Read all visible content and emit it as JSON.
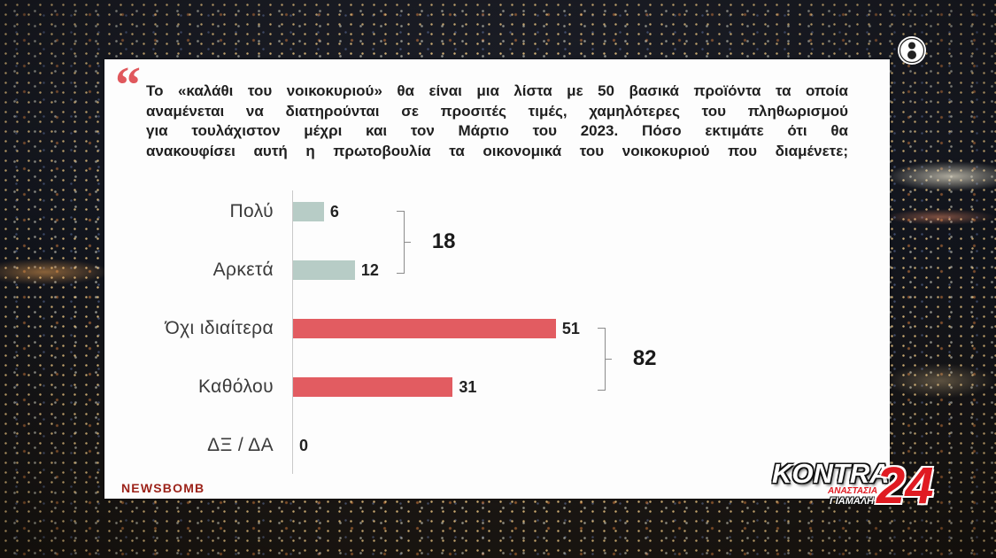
{
  "question": {
    "quote_mark": "“",
    "lines": [
      "Το «καλάθι του νοικοκυριού» θα είναι μια λίστα με 50 βασικά προϊόντα τα οποία",
      "αναμένεται να διατηρούνται σε προσιτές τιμές, χαμηλότερες του πληθωρισμού",
      "για τουλάχιστον μέχρι και τον Μάρτιο του 2023. Πόσο εκτιμάτε ότι θα",
      "ανακουφίσει αυτή η πρωτοβουλία τα οικονομικά του νοικοκυριού που διαμένετε;"
    ]
  },
  "chart_data": {
    "type": "bar",
    "orientation": "horizontal",
    "categories": [
      "Πολύ",
      "Αρκετά",
      "Όχι ιδιαίτερα",
      "Καθόλου",
      "ΔΞ / ΔΑ"
    ],
    "values": [
      6,
      12,
      51,
      31,
      0
    ],
    "bar_colors": [
      "#b7ccc6",
      "#b7ccc6",
      "#e25c61",
      "#e25c61",
      "#e25c61"
    ],
    "groups": [
      {
        "members": [
          "Πολύ",
          "Αρκετά"
        ],
        "total": 18
      },
      {
        "members": [
          "Όχι ιδιαίτερα",
          "Καθόλου"
        ],
        "total": 82
      }
    ],
    "xlim": [
      0,
      100
    ],
    "grid": false,
    "legend": "none"
  },
  "branding": {
    "source_logo": "NEWSBOMB",
    "channel_logo_icon": "channel-logo-icon",
    "show_logo": {
      "name": "KONTRA",
      "number": "24",
      "host_first_name": "ΑΝΑΣΤΑΣΙΑ",
      "host_last_name": "ΓΙΑΜΑΛΗ"
    }
  },
  "colors": {
    "panel": "#fdfdfd",
    "quote_mark": "#e0585d",
    "bracket": "#8c8c8c",
    "show_logo_red": "#e01b22",
    "source_logo": "#9c2219"
  }
}
